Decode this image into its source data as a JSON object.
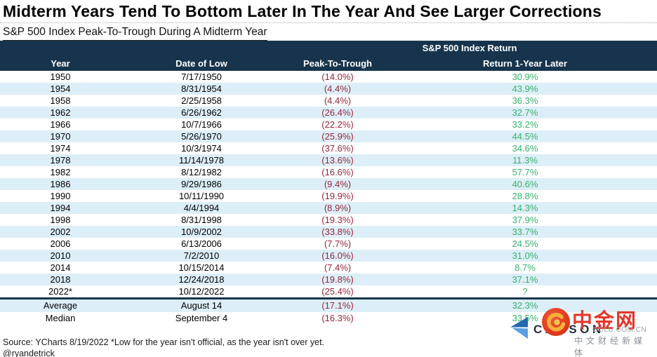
{
  "title": "Midterm Years Tend To Bottom Later In The Year And See Larger Corrections",
  "subtitle": "S&P 500 Index Peak-To-Trough During A Midterm Year",
  "chart_data": {
    "type": "table",
    "title": "Midterm Years Tend To Bottom Later In The Year And See Larger Corrections",
    "subtitle": "S&P 500 Index Peak-To-Trough During A Midterm Year",
    "group_header": "S&P 500 Index Return",
    "columns": [
      "Year",
      "Date of Low",
      "Peak-To-Trough",
      "Return 1-Year Later"
    ],
    "rows": [
      [
        "1950",
        "7/17/1950",
        "(14.0%)",
        "30.9%"
      ],
      [
        "1954",
        "8/31/1954",
        "(4.4%)",
        "43.9%"
      ],
      [
        "1958",
        "2/25/1958",
        "(4.4%)",
        "36.3%"
      ],
      [
        "1962",
        "6/26/1962",
        "(26.4%)",
        "32.7%"
      ],
      [
        "1966",
        "10/7/1966",
        "(22.2%)",
        "33.2%"
      ],
      [
        "1970",
        "5/26/1970",
        "(25.9%)",
        "44.5%"
      ],
      [
        "1974",
        "10/3/1974",
        "(37.6%)",
        "34.6%"
      ],
      [
        "1978",
        "11/14/1978",
        "(13.6%)",
        "11.3%"
      ],
      [
        "1982",
        "8/12/1982",
        "(16.6%)",
        "57.7%"
      ],
      [
        "1986",
        "9/29/1986",
        "(9.4%)",
        "40.6%"
      ],
      [
        "1990",
        "10/11/1990",
        "(19.9%)",
        "28.8%"
      ],
      [
        "1994",
        "4/4/1994",
        "(8.9%)",
        "14.3%"
      ],
      [
        "1998",
        "8/31/1998",
        "(19.3%)",
        "37.9%"
      ],
      [
        "2002",
        "10/9/2002",
        "(33.8%)",
        "33.7%"
      ],
      [
        "2006",
        "6/13/2006",
        "(7.7%)",
        "24.5%"
      ],
      [
        "2010",
        "7/2/2010",
        "(16.0%)",
        "31.0%"
      ],
      [
        "2014",
        "10/15/2014",
        "(7.4%)",
        "8.7%"
      ],
      [
        "2018",
        "12/24/2018",
        "(19.8%)",
        "37.1%"
      ],
      [
        "2022*",
        "10/12/2022",
        "(25.4%)",
        "?"
      ]
    ],
    "summary_rows": [
      [
        "Average",
        "August 14",
        "(17.1%)",
        "32.3%"
      ],
      [
        "Median",
        "September 4",
        "(16.3%)",
        "33.5%"
      ]
    ]
  },
  "footer": {
    "source": "Source: YCharts 8/19/2022  *Low for the year isn't official, as the year isn't over yet.",
    "handle": "@ryandetrick"
  },
  "watermark": {
    "carson_label": "CARSON",
    "site_name": "中金网",
    "site_domain": "GOLD.COM.CN",
    "site_tagline": "中文财经新媒体"
  },
  "colors": {
    "header_bg": "#17344c",
    "stripe_bg": "#dceef8",
    "negative_text": "#93273a",
    "positive_text": "#36b06b",
    "brand_red": "#e2392b",
    "brand_gold": "#f3b23a",
    "carson_blue_dark": "#2468b0",
    "carson_blue_light": "#5b9fe3"
  }
}
